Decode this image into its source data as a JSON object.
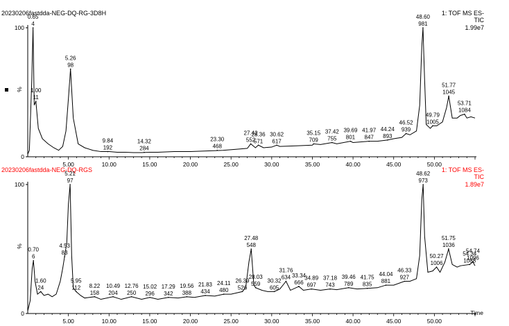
{
  "chart_data": [
    {
      "type": "line",
      "title": "20230206fastdda-NEG-DQ-RG-3D8H",
      "scan_label": "1: TOF MS ES-",
      "trace_label": "TIC",
      "intensity_label": "1.99e7",
      "ylabel": "%",
      "xlabel": "",
      "xlim": [
        0,
        55
      ],
      "ylim": [
        0,
        100
      ],
      "x_ticks": [
        5,
        10,
        15,
        20,
        25,
        30,
        35,
        40,
        45,
        50
      ],
      "x_tick_labels": [
        "5.00",
        "10.00",
        "15.00",
        "20.00",
        "25.00",
        "30.00",
        "35.00",
        "40.00",
        "45.00",
        "50.00"
      ],
      "y_tick_labels": {
        "top": "100",
        "bottom": "0"
      },
      "color": "#000000",
      "label_color": "#000000",
      "baseline": [
        [
          0,
          2
        ],
        [
          0.2,
          5
        ],
        [
          0.5,
          60
        ],
        [
          0.65,
          100
        ],
        [
          0.8,
          40
        ],
        [
          1.0,
          43
        ],
        [
          1.3,
          22
        ],
        [
          1.8,
          14
        ],
        [
          2.5,
          10
        ],
        [
          3.2,
          7
        ],
        [
          3.8,
          5
        ],
        [
          4.3,
          8
        ],
        [
          4.7,
          20
        ],
        [
          5.0,
          45
        ],
        [
          5.26,
          68
        ],
        [
          5.6,
          30
        ],
        [
          6.2,
          10
        ],
        [
          7,
          7
        ],
        [
          8,
          5
        ],
        [
          9,
          4
        ],
        [
          10,
          4
        ],
        [
          11,
          3.5
        ],
        [
          12,
          3.5
        ],
        [
          13,
          3.2
        ],
        [
          14,
          3.2
        ],
        [
          15,
          3.5
        ],
        [
          16,
          3.5
        ],
        [
          18,
          4
        ],
        [
          20,
          4
        ],
        [
          22,
          4.5
        ],
        [
          24,
          5
        ],
        [
          26,
          6
        ],
        [
          27,
          6.5
        ],
        [
          27.42,
          10
        ],
        [
          28,
          7
        ],
        [
          28.36,
          9
        ],
        [
          29,
          7
        ],
        [
          30,
          7.5
        ],
        [
          30.62,
          9
        ],
        [
          31,
          8
        ],
        [
          33,
          8.5
        ],
        [
          35,
          9
        ],
        [
          35.15,
          10
        ],
        [
          36,
          9.5
        ],
        [
          37.42,
          11
        ],
        [
          38,
          10
        ],
        [
          39.69,
          12
        ],
        [
          40,
          11
        ],
        [
          41.97,
          12
        ],
        [
          43,
          12
        ],
        [
          44.24,
          13
        ],
        [
          45,
          14
        ],
        [
          46,
          15
        ],
        [
          46.52,
          18
        ],
        [
          47,
          17
        ],
        [
          47.8,
          20
        ],
        [
          48.2,
          40
        ],
        [
          48.45,
          85
        ],
        [
          48.6,
          100
        ],
        [
          48.8,
          60
        ],
        [
          49,
          25
        ],
        [
          49.5,
          22
        ],
        [
          49.79,
          24
        ],
        [
          50.3,
          24
        ],
        [
          51,
          27
        ],
        [
          51.5,
          38
        ],
        [
          51.77,
          47
        ],
        [
          52.2,
          30
        ],
        [
          52.8,
          30
        ],
        [
          53.2,
          32
        ],
        [
          53.71,
          33
        ],
        [
          54,
          30
        ],
        [
          54.5,
          31
        ],
        [
          55,
          30
        ]
      ],
      "peaks": [
        {
          "time": "0.65",
          "scan": "4",
          "x": 0.65,
          "y": 100
        },
        {
          "time": "1.00",
          "scan": "11",
          "x": 1.0,
          "y": 43
        },
        {
          "time": "5.26",
          "scan": "98",
          "x": 5.26,
          "y": 68
        },
        {
          "time": "9.84",
          "scan": "192",
          "x": 9.84,
          "y": 4
        },
        {
          "time": "14.32",
          "scan": "284",
          "x": 14.32,
          "y": 3.5
        },
        {
          "time": "23.30",
          "scan": "468",
          "x": 23.3,
          "y": 5
        },
        {
          "time": "27.42",
          "scan": "552",
          "x": 27.42,
          "y": 10
        },
        {
          "time": "28.36",
          "scan": "571",
          "x": 28.36,
          "y": 9
        },
        {
          "time": "30.62",
          "scan": "617",
          "x": 30.62,
          "y": 9
        },
        {
          "time": "35.15",
          "scan": "709",
          "x": 35.15,
          "y": 10
        },
        {
          "time": "37.42",
          "scan": "755",
          "x": 37.42,
          "y": 11
        },
        {
          "time": "39.69",
          "scan": "801",
          "x": 39.69,
          "y": 12
        },
        {
          "time": "41.97",
          "scan": "847",
          "x": 41.97,
          "y": 12
        },
        {
          "time": "44.24",
          "scan": "893",
          "x": 44.24,
          "y": 13
        },
        {
          "time": "46.52",
          "scan": "939",
          "x": 46.52,
          "y": 18
        },
        {
          "time": "48.60",
          "scan": "981",
          "x": 48.6,
          "y": 100
        },
        {
          "time": "49.79",
          "scan": "1005",
          "x": 49.79,
          "y": 24
        },
        {
          "time": "51.77",
          "scan": "1045",
          "x": 51.77,
          "y": 47
        },
        {
          "time": "53.71",
          "scan": "1084",
          "x": 53.71,
          "y": 33
        }
      ]
    },
    {
      "type": "line",
      "title": "20230206fastdda-NEG-DQ-RGS",
      "scan_label": "1: TOF MS ES-",
      "trace_label": "TIC",
      "intensity_label": "1.89e7",
      "ylabel": "%",
      "xlabel": "Time",
      "xlim": [
        0,
        55
      ],
      "ylim": [
        0,
        100
      ],
      "x_ticks": [
        5,
        10,
        15,
        20,
        25,
        30,
        35,
        40,
        45,
        50
      ],
      "x_tick_labels": [
        "5.00",
        "10.00",
        "15.00",
        "20.00",
        "25.00",
        "30.00",
        "35.00",
        "40.00",
        "45.00",
        "50.00"
      ],
      "y_tick_labels": {
        "top": "100",
        "bottom": "0"
      },
      "color": "#000000",
      "label_color": "#ff0000",
      "baseline": [
        [
          0,
          2
        ],
        [
          0.3,
          10
        ],
        [
          0.55,
          35
        ],
        [
          0.7,
          41
        ],
        [
          0.9,
          25
        ],
        [
          1.2,
          15
        ],
        [
          1.6,
          17
        ],
        [
          2.0,
          14
        ],
        [
          2.5,
          15
        ],
        [
          3.0,
          13
        ],
        [
          3.5,
          15
        ],
        [
          4.0,
          25
        ],
        [
          4.3,
          35
        ],
        [
          4.53,
          44
        ],
        [
          4.8,
          55
        ],
        [
          5.0,
          85
        ],
        [
          5.21,
          100
        ],
        [
          5.4,
          45
        ],
        [
          5.6,
          20
        ],
        [
          5.95,
          17
        ],
        [
          6.5,
          14
        ],
        [
          7,
          12
        ],
        [
          8.22,
          13
        ],
        [
          9,
          11
        ],
        [
          10.49,
          13
        ],
        [
          11.5,
          11
        ],
        [
          12.76,
          13
        ],
        [
          14,
          11
        ],
        [
          15.02,
          12.5
        ],
        [
          16,
          11
        ],
        [
          17.29,
          12.5
        ],
        [
          18.5,
          12
        ],
        [
          19.56,
          13
        ],
        [
          20.5,
          12.5
        ],
        [
          21.83,
          14
        ],
        [
          23,
          13.5
        ],
        [
          24.11,
          15
        ],
        [
          25,
          15
        ],
        [
          26.39,
          17
        ],
        [
          26.8,
          20
        ],
        [
          27.2,
          40
        ],
        [
          27.48,
          50
        ],
        [
          27.8,
          22
        ],
        [
          28.03,
          20
        ],
        [
          28.8,
          18
        ],
        [
          29.5,
          17
        ],
        [
          30.32,
          17
        ],
        [
          31,
          19
        ],
        [
          31.76,
          25
        ],
        [
          32.3,
          18
        ],
        [
          33.34,
          21
        ],
        [
          33.9,
          18
        ],
        [
          34.89,
          19
        ],
        [
          36,
          18
        ],
        [
          37.18,
          19
        ],
        [
          38,
          18.5
        ],
        [
          39.46,
          20
        ],
        [
          40.5,
          19
        ],
        [
          41.75,
          19.5
        ],
        [
          43,
          20
        ],
        [
          44.04,
          22
        ],
        [
          45,
          22
        ],
        [
          46.33,
          25
        ],
        [
          47,
          25
        ],
        [
          47.8,
          27
        ],
        [
          48.2,
          45
        ],
        [
          48.45,
          88
        ],
        [
          48.62,
          100
        ],
        [
          48.8,
          60
        ],
        [
          49.2,
          32
        ],
        [
          49.8,
          33
        ],
        [
          50.27,
          36
        ],
        [
          50.7,
          32
        ],
        [
          51.3,
          40
        ],
        [
          51.75,
          50
        ],
        [
          52.2,
          38
        ],
        [
          52.8,
          36
        ],
        [
          53.2,
          37
        ],
        [
          54.34,
          38
        ],
        [
          54.74,
          40
        ],
        [
          55,
          37
        ]
      ],
      "peaks": [
        {
          "time": "0.70",
          "scan": "6",
          "x": 0.7,
          "y": 41
        },
        {
          "time": "1.60",
          "scan": "24",
          "x": 1.6,
          "y": 17
        },
        {
          "time": "4.53",
          "scan": "83",
          "x": 4.53,
          "y": 44
        },
        {
          "time": "5.21",
          "scan": "97",
          "x": 5.21,
          "y": 100
        },
        {
          "time": "5.95",
          "scan": "112",
          "x": 5.95,
          "y": 17
        },
        {
          "time": "8.22",
          "scan": "158",
          "x": 8.22,
          "y": 13
        },
        {
          "time": "10.49",
          "scan": "204",
          "x": 10.49,
          "y": 13
        },
        {
          "time": "12.76",
          "scan": "250",
          "x": 12.76,
          "y": 13
        },
        {
          "time": "15.02",
          "scan": "296",
          "x": 15.02,
          "y": 12.5
        },
        {
          "time": "17.29",
          "scan": "342",
          "x": 17.29,
          "y": 12.5
        },
        {
          "time": "19.56",
          "scan": "388",
          "x": 19.56,
          "y": 13
        },
        {
          "time": "21.83",
          "scan": "434",
          "x": 21.83,
          "y": 14
        },
        {
          "time": "24.11",
          "scan": "480",
          "x": 24.11,
          "y": 15
        },
        {
          "time": "26.39",
          "scan": "526",
          "x": 26.39,
          "y": 17
        },
        {
          "time": "27.48",
          "scan": "548",
          "x": 27.48,
          "y": 50
        },
        {
          "time": "28.03",
          "scan": "559",
          "x": 28.03,
          "y": 20
        },
        {
          "time": "30.32",
          "scan": "605",
          "x": 30.32,
          "y": 17
        },
        {
          "time": "31.76",
          "scan": "634",
          "x": 31.76,
          "y": 25
        },
        {
          "time": "33.34",
          "scan": "666",
          "x": 33.34,
          "y": 21
        },
        {
          "time": "34.89",
          "scan": "697",
          "x": 34.89,
          "y": 19
        },
        {
          "time": "37.18",
          "scan": "743",
          "x": 37.18,
          "y": 19
        },
        {
          "time": "39.46",
          "scan": "789",
          "x": 39.46,
          "y": 20
        },
        {
          "time": "41.75",
          "scan": "835",
          "x": 41.75,
          "y": 19.5
        },
        {
          "time": "44.04",
          "scan": "881",
          "x": 44.04,
          "y": 22
        },
        {
          "time": "46.33",
          "scan": "927",
          "x": 46.33,
          "y": 25
        },
        {
          "time": "48.62",
          "scan": "973",
          "x": 48.62,
          "y": 100
        },
        {
          "time": "50.27",
          "scan": "1006",
          "x": 50.27,
          "y": 36
        },
        {
          "time": "51.75",
          "scan": "1036",
          "x": 51.75,
          "y": 50
        },
        {
          "time": "54.34",
          "scan": "1088",
          "x": 54.34,
          "y": 38
        },
        {
          "time": "54.74",
          "scan": "1096",
          "x": 54.74,
          "y": 40
        }
      ]
    }
  ]
}
